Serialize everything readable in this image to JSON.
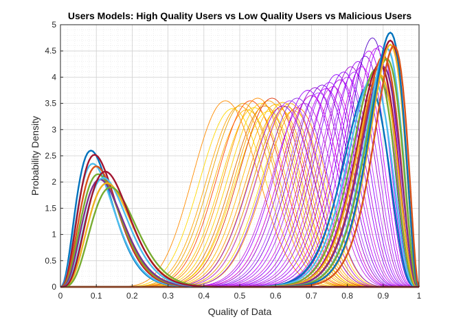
{
  "chart_data": {
    "type": "line",
    "title": "Users Models: High Quality Users vs Low Quality Users vs Malicious Users",
    "xlabel": "Quality of Data",
    "ylabel": "Probability Density",
    "xlim": [
      0,
      1
    ],
    "ylim": [
      0,
      5
    ],
    "xticks": [
      "0",
      "0.1",
      "0.2",
      "0.3",
      "0.4",
      "0.5",
      "0.6",
      "0.7",
      "0.8",
      "0.9",
      "1"
    ],
    "yticks": [
      "0",
      "0.5",
      "1",
      "1.5",
      "2",
      "2.5",
      "3",
      "3.5",
      "4",
      "4.5",
      "5"
    ],
    "grid": "major and minor dotted",
    "legend": "none",
    "groups": [
      {
        "group": "low_quality_peaks",
        "style": "thin",
        "curves": [
          {
            "mode": 0.46,
            "peak": 3.55,
            "color": "#FF8C00"
          },
          {
            "mode": 0.48,
            "peak": 3.4,
            "color": "#FFD700"
          },
          {
            "mode": 0.5,
            "peak": 3.45,
            "color": "#FFA500"
          },
          {
            "mode": 0.51,
            "peak": 3.5,
            "color": "#E8A000"
          },
          {
            "mode": 0.52,
            "peak": 3.38,
            "color": "#FFB000"
          },
          {
            "mode": 0.53,
            "peak": 3.55,
            "color": "#FF4500"
          },
          {
            "mode": 0.54,
            "peak": 3.42,
            "color": "#FFCC00"
          },
          {
            "mode": 0.55,
            "peak": 3.6,
            "color": "#FF8C00"
          },
          {
            "mode": 0.56,
            "peak": 3.5,
            "color": "#FFD000"
          },
          {
            "mode": 0.57,
            "peak": 3.45,
            "color": "#E07000"
          },
          {
            "mode": 0.58,
            "peak": 3.55,
            "color": "#FFA500"
          },
          {
            "mode": 0.58,
            "peak": 3.35,
            "color": "#FFE000"
          },
          {
            "mode": 0.59,
            "peak": 3.6,
            "color": "#E03000"
          },
          {
            "mode": 0.6,
            "peak": 3.48,
            "color": "#FFB800"
          },
          {
            "mode": 0.61,
            "peak": 3.4,
            "color": "#FF9900"
          },
          {
            "mode": 0.62,
            "peak": 3.52,
            "color": "#FFC400"
          },
          {
            "mode": 0.63,
            "peak": 3.44,
            "color": "#E89000"
          },
          {
            "mode": 0.64,
            "peak": 3.5,
            "color": "#FFA800"
          },
          {
            "mode": 0.65,
            "peak": 3.36,
            "color": "#FFD500"
          },
          {
            "mode": 0.66,
            "peak": 3.42,
            "color": "#FF7F00"
          }
        ]
      },
      {
        "group": "malicious_peaks",
        "style": "thin",
        "curves": [
          {
            "mode": 0.62,
            "peak": 3.45,
            "color": "#9400D3"
          },
          {
            "mode": 0.64,
            "peak": 3.55,
            "color": "#B030FF"
          },
          {
            "mode": 0.66,
            "peak": 3.6,
            "color": "#8A2BE2"
          },
          {
            "mode": 0.68,
            "peak": 3.5,
            "color": "#C020E0"
          },
          {
            "mode": 0.69,
            "peak": 3.75,
            "color": "#A000FF"
          },
          {
            "mode": 0.7,
            "peak": 3.65,
            "color": "#D000D0"
          },
          {
            "mode": 0.71,
            "peak": 3.8,
            "color": "#9400D3"
          },
          {
            "mode": 0.72,
            "peak": 3.7,
            "color": "#B040FF"
          },
          {
            "mode": 0.73,
            "peak": 3.85,
            "color": "#7B00E0"
          },
          {
            "mode": 0.74,
            "peak": 3.78,
            "color": "#C000FF"
          },
          {
            "mode": 0.75,
            "peak": 3.9,
            "color": "#A020F0"
          },
          {
            "mode": 0.76,
            "peak": 3.82,
            "color": "#D020E0"
          },
          {
            "mode": 0.77,
            "peak": 4.05,
            "color": "#9000FF"
          },
          {
            "mode": 0.78,
            "peak": 3.95,
            "color": "#B000E0"
          },
          {
            "mode": 0.79,
            "peak": 4.1,
            "color": "#8A00FF"
          },
          {
            "mode": 0.8,
            "peak": 4.0,
            "color": "#C030FF"
          },
          {
            "mode": 0.81,
            "peak": 4.2,
            "color": "#A000D0"
          },
          {
            "mode": 0.82,
            "peak": 4.1,
            "color": "#B020FF"
          },
          {
            "mode": 0.83,
            "peak": 4.3,
            "color": "#9A00F0"
          },
          {
            "mode": 0.84,
            "peak": 4.2,
            "color": "#D000FF"
          },
          {
            "mode": 0.85,
            "peak": 4.4,
            "color": "#8000E0"
          },
          {
            "mode": 0.86,
            "peak": 4.5,
            "color": "#B800FF"
          },
          {
            "mode": 0.87,
            "peak": 4.75,
            "color": "#5000C8"
          },
          {
            "mode": 0.88,
            "peak": 4.55,
            "color": "#C820E8"
          },
          {
            "mode": 0.89,
            "peak": 4.6,
            "color": "#A000FF"
          }
        ]
      },
      {
        "group": "high_quality_peaks",
        "style": "thick",
        "curves": [
          {
            "mode": 0.86,
            "peak": 3.85,
            "color": "#0072BD"
          },
          {
            "mode": 0.87,
            "peak": 4.0,
            "color": "#4DBEEE"
          },
          {
            "mode": 0.88,
            "peak": 4.15,
            "color": "#77AC30"
          },
          {
            "mode": 0.89,
            "peak": 4.25,
            "color": "#A2142F"
          },
          {
            "mode": 0.89,
            "peak": 4.05,
            "color": "#EDB120"
          },
          {
            "mode": 0.9,
            "peak": 4.4,
            "color": "#D95319"
          },
          {
            "mode": 0.9,
            "peak": 4.2,
            "color": "#7E2F8E"
          },
          {
            "mode": 0.91,
            "peak": 4.55,
            "color": "#4DBEEE"
          },
          {
            "mode": 0.91,
            "peak": 4.35,
            "color": "#77AC30"
          },
          {
            "mode": 0.92,
            "peak": 4.7,
            "color": "#A2142F"
          },
          {
            "mode": 0.92,
            "peak": 4.62,
            "color": "#EDB120"
          },
          {
            "mode": 0.92,
            "peak": 4.85,
            "color": "#0072BD"
          },
          {
            "mode": 0.93,
            "peak": 4.6,
            "color": "#D95319"
          }
        ]
      },
      {
        "group": "low_peaks_near_0.1",
        "style": "thick",
        "curves": [
          {
            "mode": 0.085,
            "peak": 2.6,
            "color": "#0072BD"
          },
          {
            "mode": 0.09,
            "peak": 2.35,
            "color": "#4DBEEE"
          },
          {
            "mode": 0.095,
            "peak": 2.52,
            "color": "#A2142F"
          },
          {
            "mode": 0.1,
            "peak": 2.3,
            "color": "#D95319"
          },
          {
            "mode": 0.105,
            "peak": 2.15,
            "color": "#77AC30"
          },
          {
            "mode": 0.11,
            "peak": 2.05,
            "color": "#7E2F8E"
          },
          {
            "mode": 0.12,
            "peak": 2.08,
            "color": "#4DBEEE"
          },
          {
            "mode": 0.13,
            "peak": 1.98,
            "color": "#EDB120"
          },
          {
            "mode": 0.14,
            "peak": 1.9,
            "color": "#77AC30"
          },
          {
            "mode": 0.125,
            "peak": 2.2,
            "color": "#A2142F"
          }
        ]
      }
    ]
  }
}
